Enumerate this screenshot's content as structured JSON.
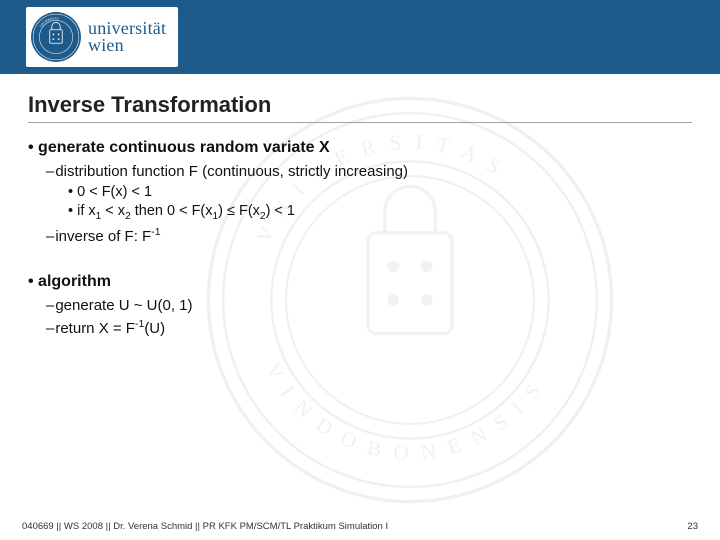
{
  "header": {
    "logo_line1": "universität",
    "logo_line2": "wien",
    "band_color": "#1e5b8a"
  },
  "title": "Inverse Transformation",
  "bullets": {
    "l1a": "generate continuous random variate X",
    "l2a": "distribution function F (continuous, strictly increasing)",
    "l3a_html": "0 < F(x) < 1",
    "l3b_html": "if x<sub>1</sub> < x<sub>2</sub> then 0 < F(x<sub>1</sub>) &le; F(x<sub>2</sub>) < 1",
    "l2b_html": "inverse of F: F<sup>-1</sup>",
    "l1b": "algorithm",
    "l2c": "generate U ~ U(0, 1)",
    "l2d_html": "return X = F<sup>-1</sup>(U)"
  },
  "footer": {
    "left": "040669 || WS 2008 || Dr. Verena Schmid || PR KFK PM/SCM/TL Praktikum Simulation I",
    "page": "23"
  },
  "colors": {
    "title_rule": "#9aa4ac",
    "text": "#111111",
    "watermark": "#666666"
  }
}
